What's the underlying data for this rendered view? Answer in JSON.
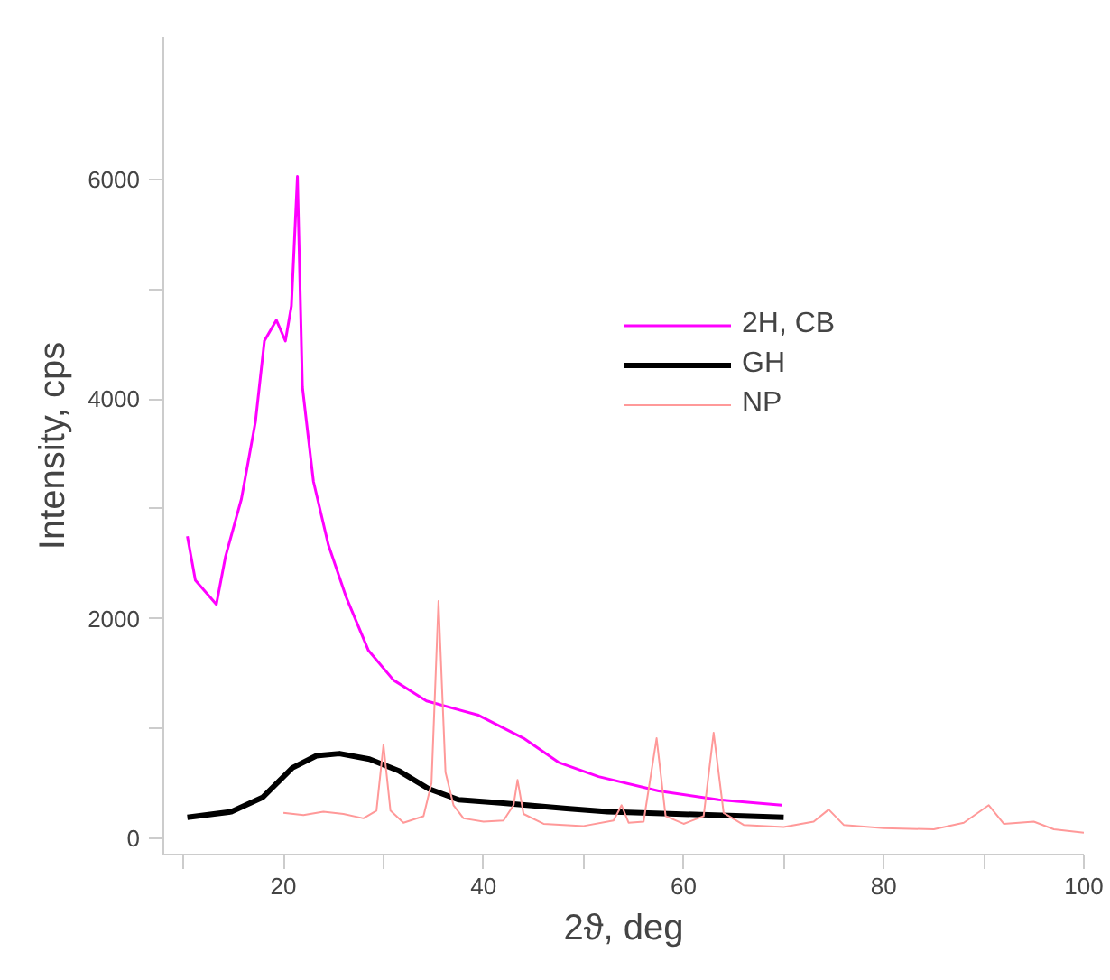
{
  "chart_data": {
    "type": "line",
    "xlabel": "2ϑ, deg",
    "ylabel": "Intensity, cps",
    "xlim": [
      8,
      100
    ],
    "ylim": [
      -150,
      7300
    ],
    "xticks": [
      {
        "value": 10,
        "label": null
      },
      20,
      {
        "value": 30,
        "label": null
      },
      40,
      {
        "value": 50,
        "label": null
      },
      60,
      {
        "value": 70,
        "label": null
      },
      80,
      {
        "value": 90,
        "label": null
      },
      100
    ],
    "yticks": [
      0,
      {
        "value": 1000,
        "label": null
      },
      2000,
      {
        "value": 3000,
        "label": null
      },
      4000,
      {
        "value": 5000,
        "label": null
      },
      6000
    ],
    "grid": false,
    "legend": "right",
    "marker": "none",
    "line_style": "solid",
    "series": [
      {
        "name": "2H, CB",
        "color": "#ff00ff",
        "x": [
          10.4,
          11.2,
          13.3,
          14.2,
          15.8,
          17.2,
          18.1,
          19.3,
          20.2,
          20.8,
          21.4,
          21.9,
          23.0,
          24.5,
          26.3,
          28.5,
          31.0,
          34.3,
          39.5,
          44.0,
          47.5,
          51.5,
          57.5,
          63.5,
          69.8
        ],
        "values": [
          2750,
          2350,
          2130,
          2560,
          3090,
          3790,
          4530,
          4720,
          4530,
          4850,
          6030,
          4110,
          3250,
          2670,
          2190,
          1710,
          1440,
          1250,
          1120,
          910,
          690,
          560,
          430,
          350,
          300
        ]
      },
      {
        "name": "GH",
        "color": "#000000",
        "x": [
          10.4,
          14.8,
          17.9,
          20.9,
          23.3,
          25.6,
          28.6,
          31.6,
          34.5,
          37.5,
          41.7,
          48.3,
          52.4,
          70
        ],
        "values": [
          190,
          240,
          370,
          640,
          750,
          770,
          720,
          610,
          450,
          350,
          320,
          270,
          240,
          190
        ]
      },
      {
        "name": "NP",
        "color": "#ff9999",
        "x": [
          20,
          22,
          24,
          26,
          28,
          29.3,
          30,
          30.7,
          32,
          34,
          34.8,
          35.5,
          36.2,
          37,
          38,
          40,
          42,
          43,
          43.4,
          44,
          46,
          50,
          53,
          53.8,
          54.5,
          56,
          57.3,
          58.2,
          60,
          62,
          63,
          64,
          66,
          70,
          73,
          74.5,
          76,
          80,
          85,
          88,
          90.5,
          92,
          95,
          97,
          100
        ],
        "values": [
          230,
          210,
          240,
          220,
          180,
          250,
          850,
          250,
          140,
          200,
          500,
          2160,
          600,
          300,
          180,
          150,
          160,
          300,
          530,
          220,
          130,
          110,
          160,
          300,
          140,
          150,
          910,
          200,
          130,
          200,
          960,
          230,
          120,
          100,
          150,
          260,
          120,
          90,
          80,
          140,
          300,
          130,
          150,
          80,
          50
        ]
      }
    ]
  }
}
